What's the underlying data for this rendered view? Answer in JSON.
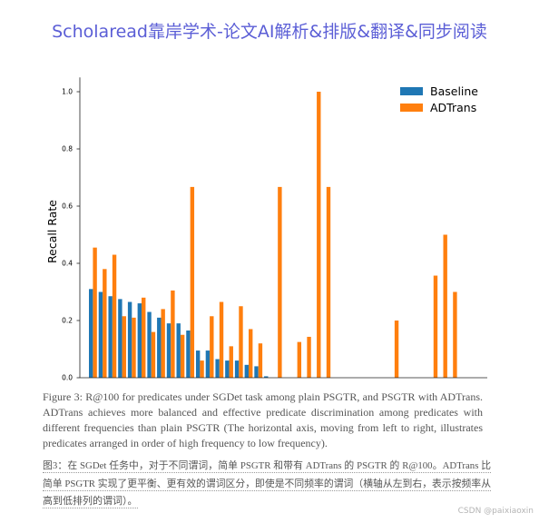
{
  "header": {
    "title": "Scholaread靠岸学术-论文AI解析&排版&翻译&同步阅读",
    "color": "#5b5ed6"
  },
  "chart_data": {
    "type": "bar",
    "xlabel": "",
    "ylabel": "Recall Rate",
    "ylim": [
      0,
      1.05
    ],
    "yticks": [
      "0.0",
      "0.2",
      "0.4",
      "0.6",
      "0.8",
      "1.0"
    ],
    "grid": false,
    "legend_position": "top-right",
    "series": [
      {
        "name": "Baseline",
        "color": "#1f77b4",
        "values": [
          0.31,
          0.3,
          0.285,
          0.275,
          0.265,
          0.26,
          0.23,
          0.21,
          0.19,
          0.19,
          0.165,
          0.095,
          0.095,
          0.065,
          0.06,
          0.06,
          0.045,
          0.04,
          0.005,
          0,
          0,
          0,
          0,
          0,
          0,
          0,
          0,
          0,
          0,
          0,
          0,
          0,
          0,
          0,
          0,
          0,
          0,
          0,
          0,
          0
        ]
      },
      {
        "name": "ADTrans",
        "color": "#ff7f0e",
        "values": [
          0.455,
          0.38,
          0.43,
          0.215,
          0.21,
          0.28,
          0.16,
          0.24,
          0.305,
          0.15,
          0.667,
          0.06,
          0.215,
          0.265,
          0.11,
          0.25,
          0.17,
          0.12,
          0,
          0.667,
          0,
          0.125,
          0.143,
          1.0,
          0.667,
          0,
          0,
          0,
          0,
          0,
          0,
          0.2,
          0,
          0,
          0,
          0.357,
          0.5,
          0.3,
          0,
          0
        ]
      }
    ]
  },
  "caption": {
    "lines": [
      "Figure 3: R@100 for predicates under SGDet task among plain PSGTR, and PSGTR with ADTrans.",
      "ADTrans achieves more balanced and effective predicate discrimination among predicates with",
      "different frequencies than plain PSGTR (The horizontal axis, moving from left to right, illustrates",
      "predicates arranged in order of high frequency to low frequency)."
    ]
  },
  "translation": {
    "lines": [
      "图3：在 SGDet 任务中，对于不同谓词，简单 PSGTR 和带有 ADTrans 的 PSGTR 的 R@100。ADTrans 比",
      "简单 PSGTR 实现了更平衡、更有效的谓词区分，即使是不同频率的谓词（横轴从左到右，表示按频率从",
      "高到低排列的谓词）。"
    ]
  },
  "watermark": "CSDN @paixiaoxin"
}
